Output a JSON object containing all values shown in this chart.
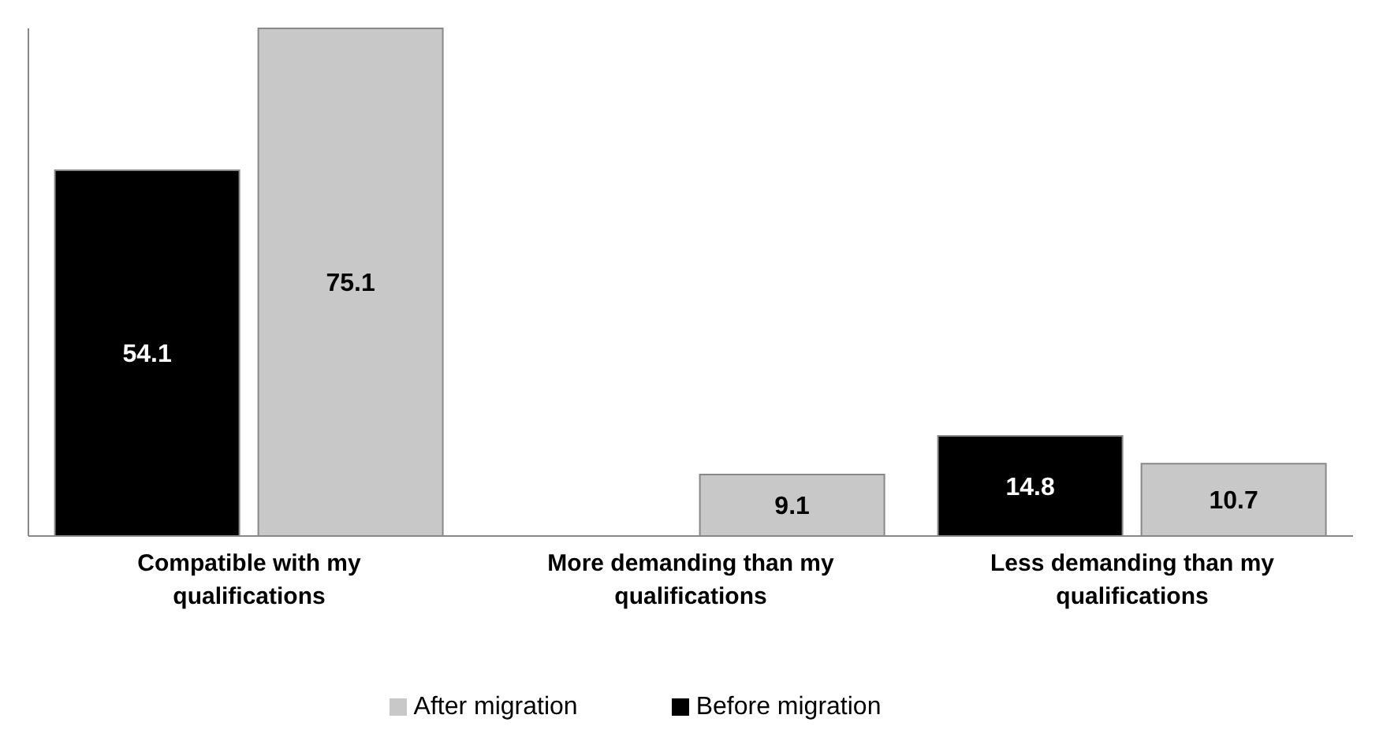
{
  "chart_data": {
    "type": "bar",
    "categories": [
      "Compatible with my qualifications",
      "More demanding than my qualifications",
      "Less demanding than my qualifications"
    ],
    "series": [
      {
        "name": "Before migration",
        "color": "#000000",
        "values": [
          54.1,
          null,
          14.8
        ]
      },
      {
        "name": "After migration",
        "color": "#c8c8c8",
        "values": [
          75.1,
          9.1,
          10.7
        ]
      }
    ],
    "data_labels": true,
    "legend": "bottom",
    "tick_labels": "x",
    "grid": false
  }
}
